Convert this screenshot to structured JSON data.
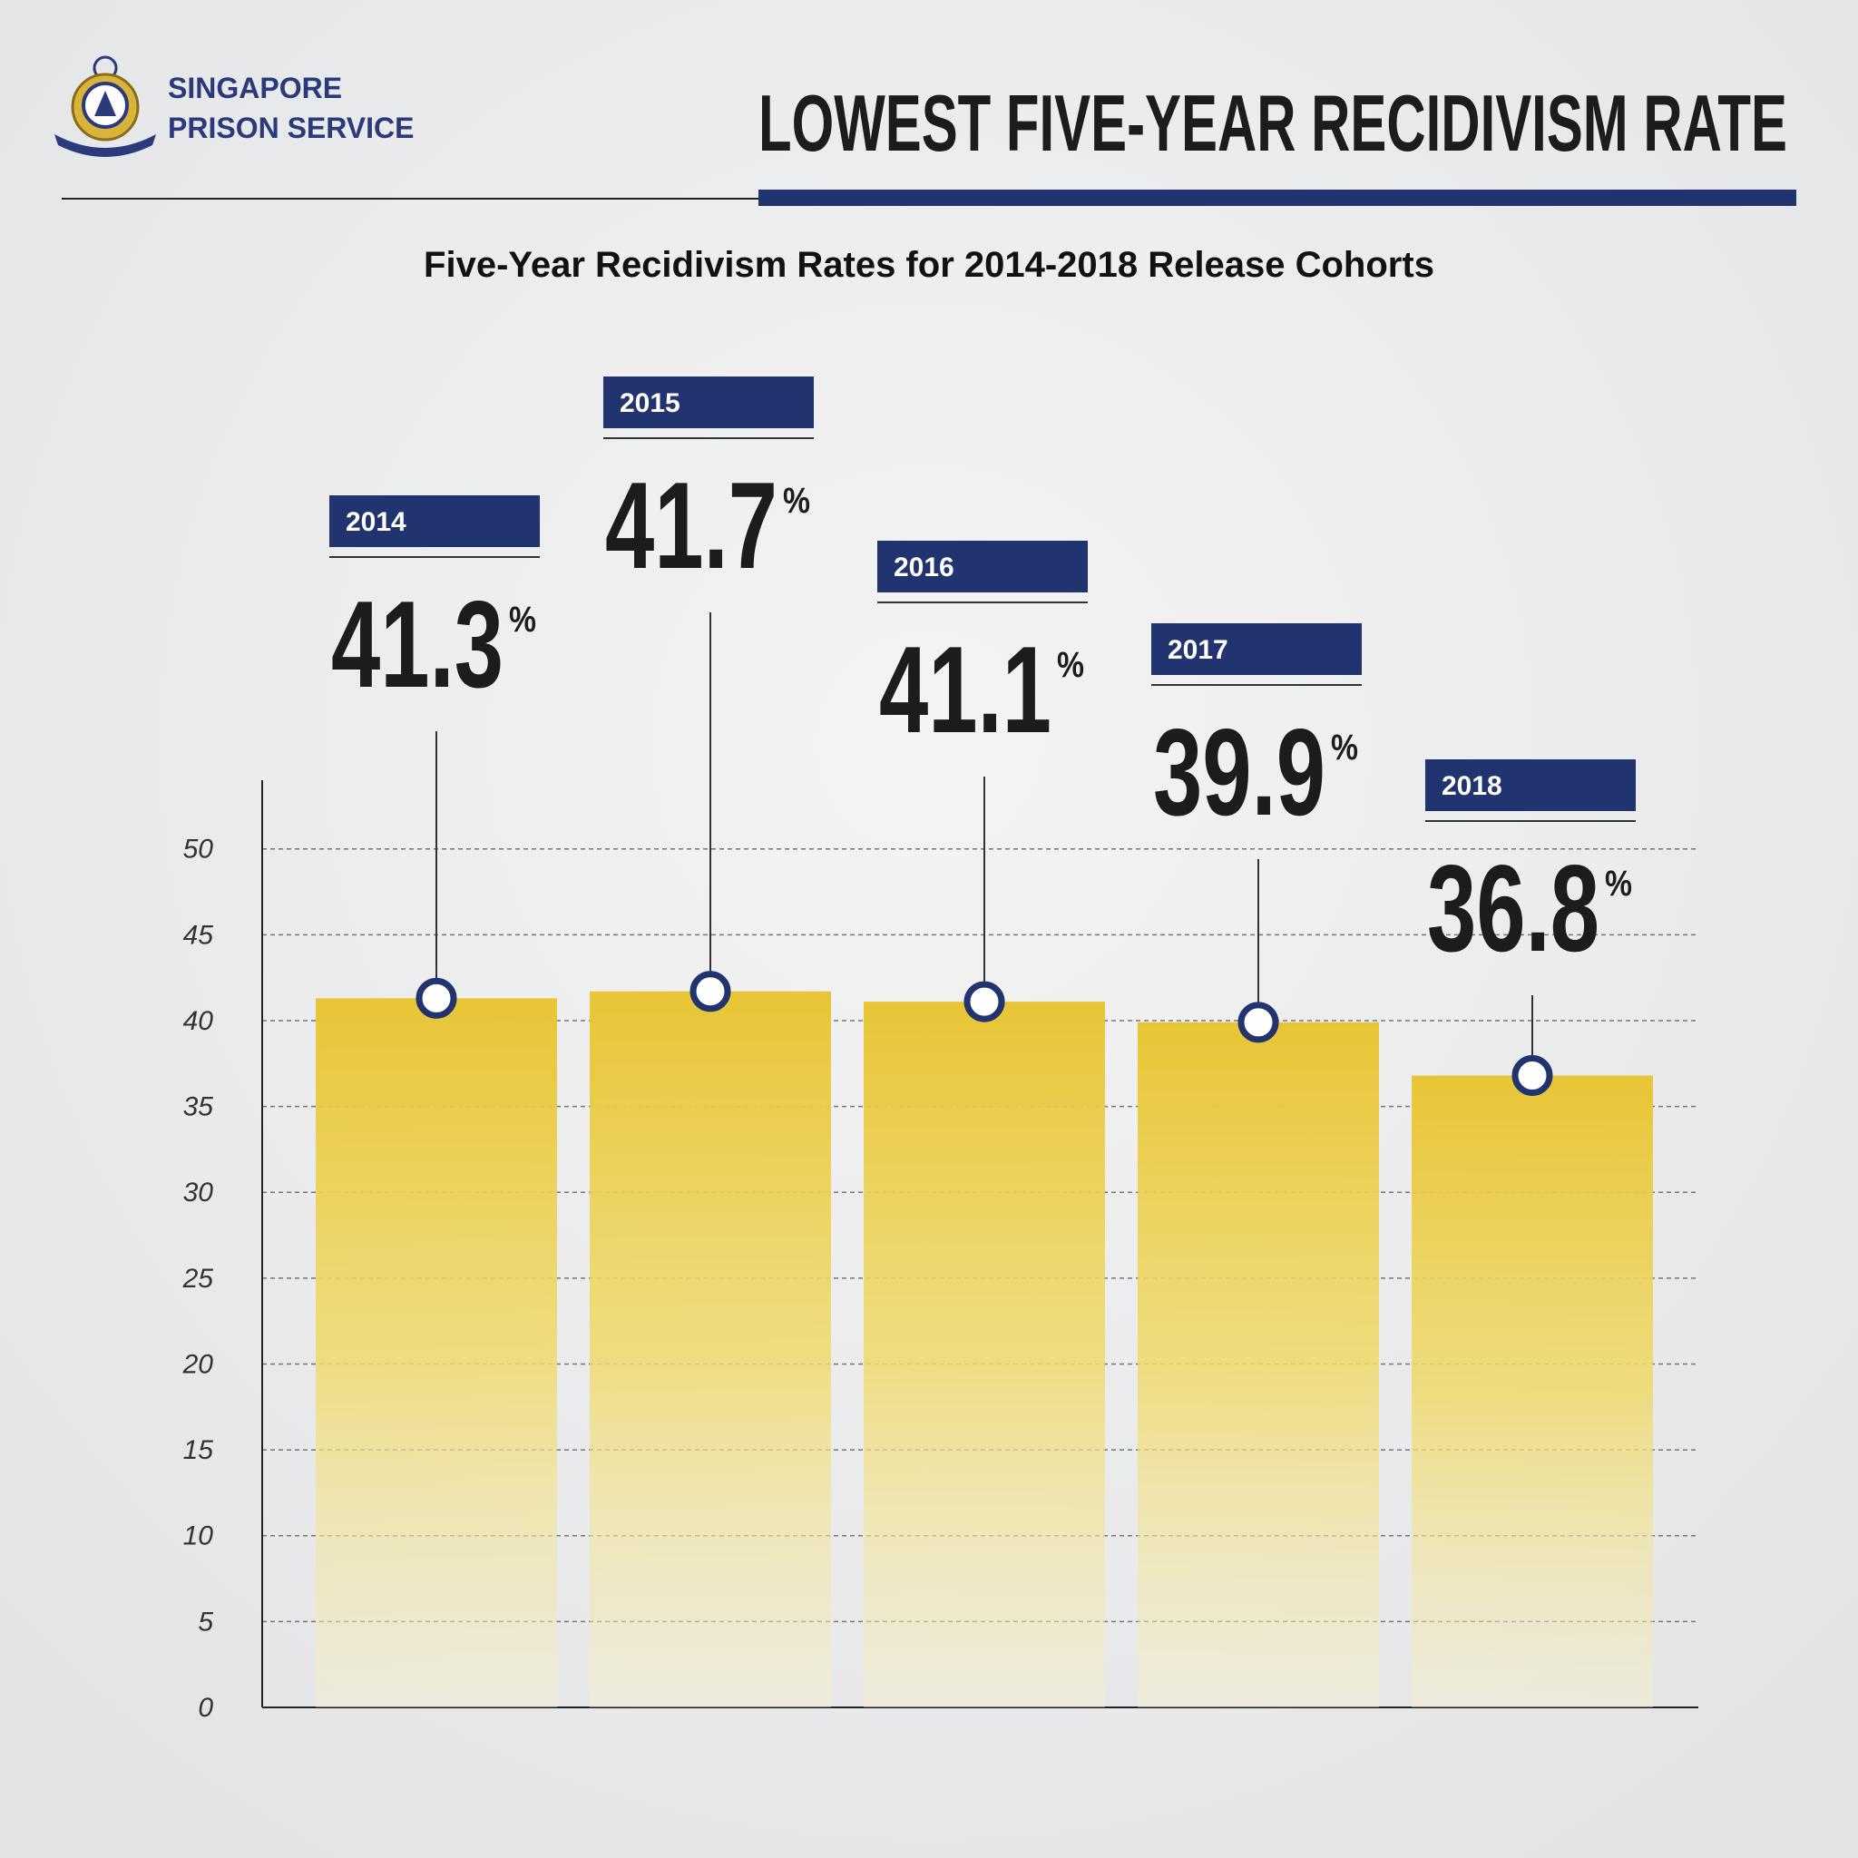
{
  "header": {
    "org_line1": "SINGAPORE",
    "org_line2": "PRISON SERVICE"
  },
  "chart_data": {
    "type": "bar",
    "title": "LOWEST FIVE-YEAR RECIDIVISM RATE",
    "subtitle": "Five-Year Recidivism Rates for 2014-2018 Release Cohorts",
    "categories": [
      "2014",
      "2015",
      "2016",
      "2017",
      "2018"
    ],
    "values": [
      41.3,
      41.7,
      41.1,
      39.9,
      36.8
    ],
    "unit": "%",
    "color": "#e8c535",
    "ylim": [
      0,
      54
    ],
    "yticks": [
      0,
      5,
      10,
      15,
      20,
      25,
      30,
      35,
      40,
      45,
      50
    ],
    "grid": true
  }
}
